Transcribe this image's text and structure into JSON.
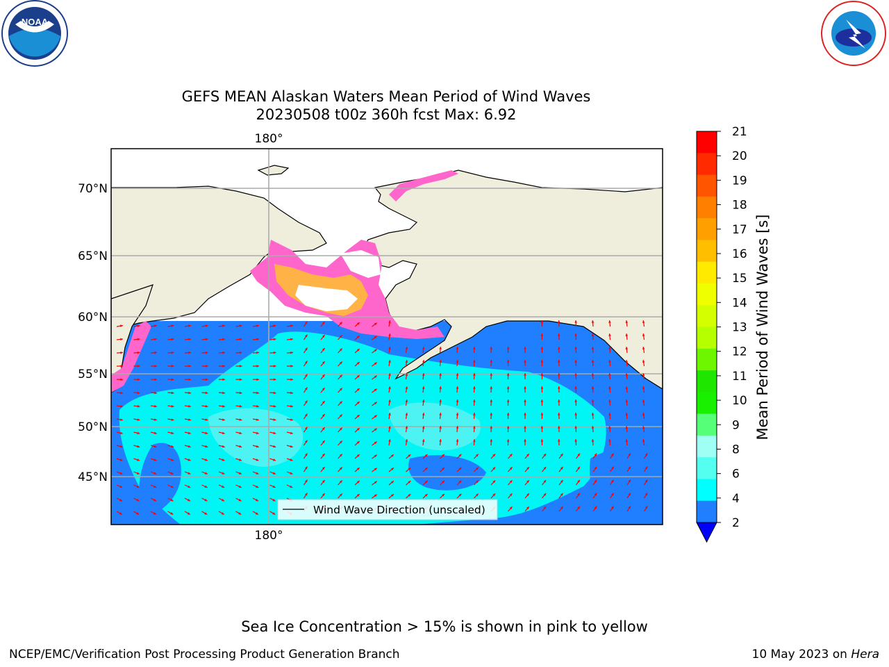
{
  "title": {
    "line1": "GEFS MEAN Alaskan Waters Mean Period of Wind Waves",
    "line2": "20230508 t00z 360h fcst   Max: 6.92"
  },
  "map": {
    "lat_labels": [
      "70°N",
      "65°N",
      "60°N",
      "55°N",
      "50°N",
      "45°N"
    ],
    "lon_label_top": "180°",
    "lon_label_bottom": "180°",
    "legend_label": "Wind Wave Direction (unscaled)",
    "colors": {
      "land": "#efeddc",
      "period_2_4": "#1f7fff",
      "period_4_6": "#00f5f5",
      "period_6_8": "#55f2f2",
      "ice_pink": "#ff66cc",
      "ice_orange": "#ffb347",
      "arrow": "#ff0000"
    }
  },
  "colorbar": {
    "label": "Mean Period of Wind Waves [s]",
    "ticks": [
      "21",
      "20",
      "19",
      "18",
      "17",
      "16",
      "15",
      "14",
      "13",
      "12",
      "11",
      "10",
      "9",
      "8",
      "6",
      "4",
      "2"
    ],
    "colors": [
      "#ff0000",
      "#ff2a00",
      "#ff5500",
      "#ff7f00",
      "#ffa000",
      "#ffbf00",
      "#ffea00",
      "#f0ff00",
      "#d4ff00",
      "#b5ff00",
      "#6ef500",
      "#1ee600",
      "#18f000",
      "#55ff78",
      "#9ffff4",
      "#55fff0",
      "#00ffff",
      "#1f7fff"
    ],
    "under_color": "#0000ff"
  },
  "footer": {
    "note": "Sea Ice Concentration > 15% is shown in pink to yellow",
    "left": "NCEP/EMC/Verification Post Processing Product Generation Branch",
    "right_prefix": "10 May 2023 on ",
    "right_host": "Hera"
  },
  "logos": {
    "noaa_text": "NOAA",
    "noaa_ring": "NATIONAL OCEANIC AND ATMOSPHERIC ADMINISTRATION · U.S. DEPARTMENT OF COMMERCE",
    "nws_ring": "NATIONAL WEATHER SERVICE"
  }
}
